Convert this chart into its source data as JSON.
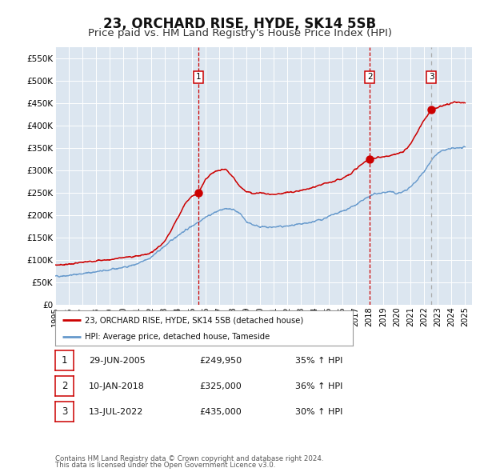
{
  "title": "23, ORCHARD RISE, HYDE, SK14 5SB",
  "subtitle": "Price paid vs. HM Land Registry's House Price Index (HPI)",
  "title_fontsize": 12,
  "subtitle_fontsize": 9.5,
  "background_color": "#ffffff",
  "plot_bg_color": "#dce6f0",
  "grid_color": "#ffffff",
  "ylim": [
    0,
    575000
  ],
  "xlim_start": 1995.0,
  "xlim_end": 2025.5,
  "yticks": [
    0,
    50000,
    100000,
    150000,
    200000,
    250000,
    300000,
    350000,
    400000,
    450000,
    500000,
    550000
  ],
  "ytick_labels": [
    "£0",
    "£50K",
    "£100K",
    "£150K",
    "£200K",
    "£250K",
    "£300K",
    "£350K",
    "£400K",
    "£450K",
    "£500K",
    "£550K"
  ],
  "xticks": [
    1995,
    1996,
    1997,
    1998,
    1999,
    2000,
    2001,
    2002,
    2003,
    2004,
    2005,
    2006,
    2007,
    2008,
    2009,
    2010,
    2011,
    2012,
    2013,
    2014,
    2015,
    2016,
    2017,
    2018,
    2019,
    2020,
    2021,
    2022,
    2023,
    2024,
    2025
  ],
  "sale_color": "#cc0000",
  "hpi_color": "#6699cc",
  "sale_dot_color": "#cc0000",
  "vline_color_red": "#cc0000",
  "vline_color_gray": "#aaaaaa",
  "sale_label": "23, ORCHARD RISE, HYDE, SK14 5SB (detached house)",
  "hpi_label": "HPI: Average price, detached house, Tameside",
  "transactions": [
    {
      "num": 1,
      "date": "29-JUN-2005",
      "price": 249950,
      "price_str": "£249,950",
      "pct": "35%",
      "direction": "↑",
      "year": 2005.49,
      "vline": "red"
    },
    {
      "num": 2,
      "date": "10-JAN-2018",
      "price": 325000,
      "price_str": "£325,000",
      "pct": "36%",
      "direction": "↑",
      "year": 2018.03,
      "vline": "red"
    },
    {
      "num": 3,
      "date": "13-JUL-2022",
      "price": 435000,
      "price_str": "£435,000",
      "pct": "30%",
      "direction": "↑",
      "year": 2022.53,
      "vline": "gray"
    }
  ],
  "footer_line1": "Contains HM Land Registry data © Crown copyright and database right 2024.",
  "footer_line2": "This data is licensed under the Open Government Licence v3.0.",
  "legend_box_color": "#cc0000",
  "legend_border_color": "#999999",
  "hpi_waypoints_x": [
    1995.0,
    1996.0,
    1997.0,
    1998.0,
    1999.0,
    2000.0,
    2001.0,
    2002.0,
    2003.0,
    2004.0,
    2005.0,
    2006.0,
    2007.0,
    2007.8,
    2008.5,
    2009.0,
    2009.5,
    2010.0,
    2010.5,
    2011.0,
    2011.5,
    2012.0,
    2012.5,
    2013.0,
    2013.5,
    2014.0,
    2014.5,
    2015.0,
    2015.5,
    2016.0,
    2016.5,
    2017.0,
    2017.5,
    2018.0,
    2018.5,
    2019.0,
    2019.5,
    2020.0,
    2020.5,
    2021.0,
    2021.5,
    2022.0,
    2022.5,
    2023.0,
    2023.5,
    2024.0,
    2024.5,
    2025.0
  ],
  "hpi_waypoints_y": [
    63000,
    65000,
    69000,
    73000,
    77000,
    83000,
    90000,
    105000,
    130000,
    155000,
    175000,
    195000,
    210000,
    215000,
    205000,
    185000,
    178000,
    174000,
    172000,
    173000,
    174000,
    175000,
    177000,
    179000,
    182000,
    186000,
    190000,
    196000,
    202000,
    208000,
    215000,
    222000,
    232000,
    242000,
    248000,
    250000,
    252000,
    248000,
    252000,
    262000,
    278000,
    298000,
    320000,
    338000,
    345000,
    348000,
    350000,
    350000
  ],
  "sale_waypoints_x": [
    1995.0,
    1996.0,
    1997.0,
    1998.0,
    1999.0,
    2000.0,
    2001.0,
    2002.0,
    2003.0,
    2004.0,
    2004.5,
    2005.0,
    2005.49,
    2006.0,
    2006.5,
    2007.0,
    2007.5,
    2008.0,
    2008.5,
    2009.0,
    2009.5,
    2010.0,
    2010.5,
    2011.0,
    2011.5,
    2012.0,
    2012.5,
    2013.0,
    2013.5,
    2014.0,
    2014.5,
    2015.0,
    2015.5,
    2016.0,
    2016.5,
    2017.0,
    2017.5,
    2018.03,
    2018.5,
    2019.0,
    2019.5,
    2020.0,
    2020.5,
    2021.0,
    2021.5,
    2022.0,
    2022.53,
    2023.0,
    2023.5,
    2024.0,
    2024.5,
    2025.0
  ],
  "sale_waypoints_y": [
    88000,
    90000,
    94000,
    98000,
    100000,
    105000,
    108000,
    115000,
    140000,
    195000,
    225000,
    242000,
    249950,
    280000,
    293000,
    300000,
    302000,
    285000,
    265000,
    252000,
    248000,
    250000,
    247000,
    246000,
    248000,
    250000,
    252000,
    255000,
    258000,
    262000,
    268000,
    272000,
    276000,
    282000,
    290000,
    302000,
    315000,
    325000,
    328000,
    330000,
    332000,
    336000,
    342000,
    358000,
    385000,
    412000,
    435000,
    440000,
    445000,
    450000,
    452000,
    450000
  ]
}
